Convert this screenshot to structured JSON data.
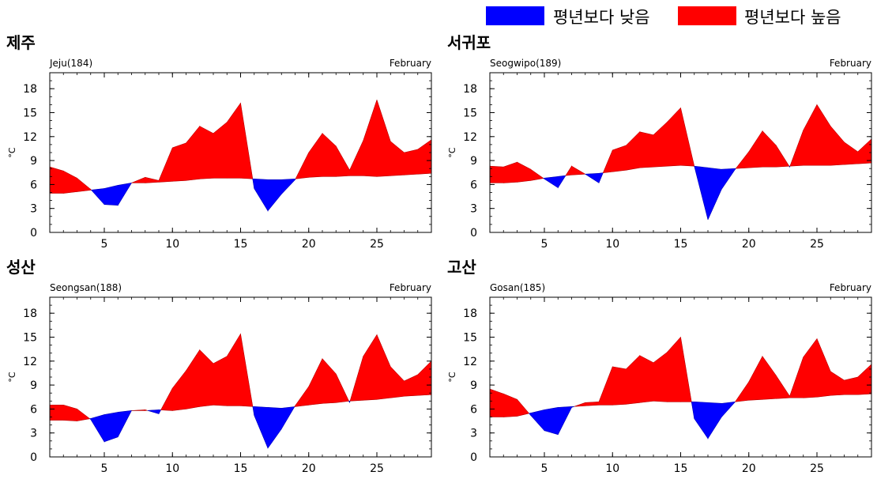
{
  "legend": {
    "below_label": "평년보다 낮음",
    "above_label": "평년보다 높음",
    "below_color": "#0000ff",
    "above_color": "#ff0000"
  },
  "chart_data": [
    {
      "type": "area",
      "title": "제주",
      "station_label": "Jeju(184)",
      "month_label": "February",
      "ylabel": "°C",
      "xlim": [
        1,
        29
      ],
      "ylim": [
        0,
        20
      ],
      "xticks": [
        5,
        10,
        15,
        20,
        25
      ],
      "yticks": [
        0,
        3,
        6,
        9,
        12,
        15,
        18
      ],
      "x": [
        1,
        2,
        3,
        4,
        5,
        6,
        7,
        8,
        9,
        10,
        11,
        12,
        13,
        14,
        15,
        16,
        17,
        18,
        19,
        20,
        21,
        22,
        23,
        24,
        25,
        26,
        27,
        28,
        29
      ],
      "observed": [
        8.2,
        7.7,
        6.8,
        5.4,
        3.5,
        3.4,
        6.2,
        6.9,
        6.5,
        10.6,
        11.2,
        13.3,
        12.4,
        13.8,
        16.2,
        5.5,
        2.7,
        4.8,
        6.6,
        10.0,
        12.4,
        10.8,
        7.8,
        11.5,
        16.6,
        11.4,
        10.0,
        10.4,
        11.6
      ],
      "normal": [
        4.9,
        4.9,
        5.1,
        5.3,
        5.5,
        5.9,
        6.2,
        6.2,
        6.3,
        6.4,
        6.5,
        6.7,
        6.8,
        6.8,
        6.8,
        6.7,
        6.6,
        6.6,
        6.7,
        6.9,
        7.0,
        7.0,
        7.1,
        7.1,
        7.0,
        7.1,
        7.2,
        7.3,
        7.4
      ]
    },
    {
      "type": "area",
      "title": "서귀포",
      "station_label": "Seogwipo(189)",
      "month_label": "February",
      "ylabel": "°C",
      "xlim": [
        1,
        29
      ],
      "ylim": [
        0,
        20
      ],
      "xticks": [
        5,
        10,
        15,
        20,
        25
      ],
      "yticks": [
        0,
        3,
        6,
        9,
        12,
        15,
        18
      ],
      "x": [
        1,
        2,
        3,
        4,
        5,
        6,
        7,
        8,
        9,
        10,
        11,
        12,
        13,
        14,
        15,
        16,
        17,
        18,
        19,
        20,
        21,
        22,
        23,
        24,
        25,
        26,
        27,
        28,
        29
      ],
      "observed": [
        8.3,
        8.2,
        8.8,
        7.9,
        6.7,
        5.6,
        8.3,
        7.3,
        6.2,
        10.3,
        10.9,
        12.6,
        12.2,
        13.8,
        15.6,
        8.3,
        1.6,
        5.4,
        7.9,
        10.1,
        12.7,
        10.9,
        8.2,
        12.8,
        16.0,
        13.3,
        11.3,
        10.1,
        11.7
      ],
      "normal": [
        6.2,
        6.2,
        6.3,
        6.5,
        6.8,
        7.0,
        7.2,
        7.3,
        7.4,
        7.6,
        7.8,
        8.1,
        8.2,
        8.3,
        8.4,
        8.3,
        8.1,
        7.9,
        8.0,
        8.1,
        8.2,
        8.2,
        8.3,
        8.4,
        8.4,
        8.4,
        8.5,
        8.6,
        8.7
      ]
    },
    {
      "type": "area",
      "title": "성산",
      "station_label": "Seongsan(188)",
      "month_label": "February",
      "ylabel": "°C",
      "xlim": [
        1,
        29
      ],
      "ylim": [
        0,
        20
      ],
      "xticks": [
        5,
        10,
        15,
        20,
        25
      ],
      "yticks": [
        0,
        3,
        6,
        9,
        12,
        15,
        18
      ],
      "x": [
        1,
        2,
        3,
        4,
        5,
        6,
        7,
        8,
        9,
        10,
        11,
        12,
        13,
        14,
        15,
        16,
        17,
        18,
        19,
        20,
        21,
        22,
        23,
        24,
        25,
        26,
        27,
        28,
        29
      ],
      "observed": [
        6.5,
        6.5,
        6.0,
        4.7,
        1.9,
        2.5,
        5.8,
        5.9,
        5.4,
        8.6,
        10.8,
        13.4,
        11.7,
        12.6,
        15.4,
        5.2,
        1.1,
        3.5,
        6.4,
        8.8,
        12.3,
        10.4,
        6.8,
        12.6,
        15.3,
        11.3,
        9.5,
        10.3,
        12.0
      ],
      "normal": [
        4.6,
        4.6,
        4.5,
        4.8,
        5.3,
        5.6,
        5.8,
        5.8,
        5.9,
        5.8,
        6.0,
        6.3,
        6.5,
        6.4,
        6.4,
        6.3,
        6.2,
        6.1,
        6.3,
        6.5,
        6.7,
        6.8,
        7.0,
        7.1,
        7.2,
        7.4,
        7.6,
        7.7,
        7.8
      ]
    },
    {
      "type": "area",
      "title": "고산",
      "station_label": "Gosan(185)",
      "month_label": "February",
      "ylabel": "°C",
      "xlim": [
        1,
        29
      ],
      "ylim": [
        0,
        20
      ],
      "xticks": [
        5,
        10,
        15,
        20,
        25
      ],
      "yticks": [
        0,
        3,
        6,
        9,
        12,
        15,
        18
      ],
      "x": [
        1,
        2,
        3,
        4,
        5,
        6,
        7,
        8,
        9,
        10,
        11,
        12,
        13,
        14,
        15,
        16,
        17,
        18,
        19,
        20,
        21,
        22,
        23,
        24,
        25,
        26,
        27,
        28,
        29
      ],
      "observed": [
        8.5,
        7.9,
        7.2,
        5.2,
        3.3,
        2.8,
        6.2,
        6.8,
        6.9,
        11.3,
        11.0,
        12.7,
        11.8,
        13.1,
        15.0,
        4.8,
        2.3,
        5.0,
        6.9,
        9.4,
        12.6,
        10.2,
        7.6,
        12.5,
        14.8,
        10.7,
        9.6,
        10.0,
        11.6
      ],
      "normal": [
        5.0,
        5.0,
        5.1,
        5.5,
        5.9,
        6.2,
        6.3,
        6.4,
        6.5,
        6.5,
        6.6,
        6.8,
        7.0,
        6.9,
        6.9,
        6.9,
        6.8,
        6.7,
        6.9,
        7.1,
        7.2,
        7.3,
        7.4,
        7.4,
        7.5,
        7.7,
        7.8,
        7.8,
        7.9
      ]
    }
  ]
}
